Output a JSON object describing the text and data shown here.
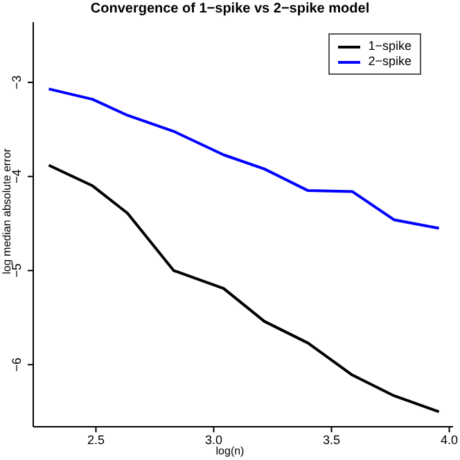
{
  "chart_data": {
    "type": "line",
    "title": "Convergence of 1−spike vs 2−spike model",
    "xlabel": "log(n)",
    "ylabel": "log median absolute error",
    "x": [
      2.3,
      2.486,
      2.634,
      2.83,
      3.042,
      3.215,
      3.4,
      3.588,
      3.765,
      3.956
    ],
    "series": [
      {
        "name": "1−spike",
        "color": "#000000",
        "values": [
          -3.88,
          -4.1,
          -4.39,
          -5.0,
          -5.19,
          -5.54,
          -5.77,
          -6.11,
          -6.33,
          -6.5
        ]
      },
      {
        "name": "2−spike",
        "color": "#0000ff",
        "values": [
          -3.07,
          -3.18,
          -3.35,
          -3.52,
          -3.77,
          -3.92,
          -4.15,
          -4.16,
          -4.46,
          -4.55
        ]
      }
    ],
    "xlim": [
      2.234,
      4.016
    ],
    "xticks": [
      2.5,
      {
        "value": 3,
        "label": "3.0"
      },
      3.5,
      {
        "value": 4,
        "label": "4.0"
      }
    ],
    "ylim": [
      -6.66,
      -2.36
    ],
    "yticks": [
      -3,
      -4,
      -5,
      -6
    ],
    "grid": false,
    "legend": "top right",
    "marker": "none",
    "line_style": "solid"
  }
}
